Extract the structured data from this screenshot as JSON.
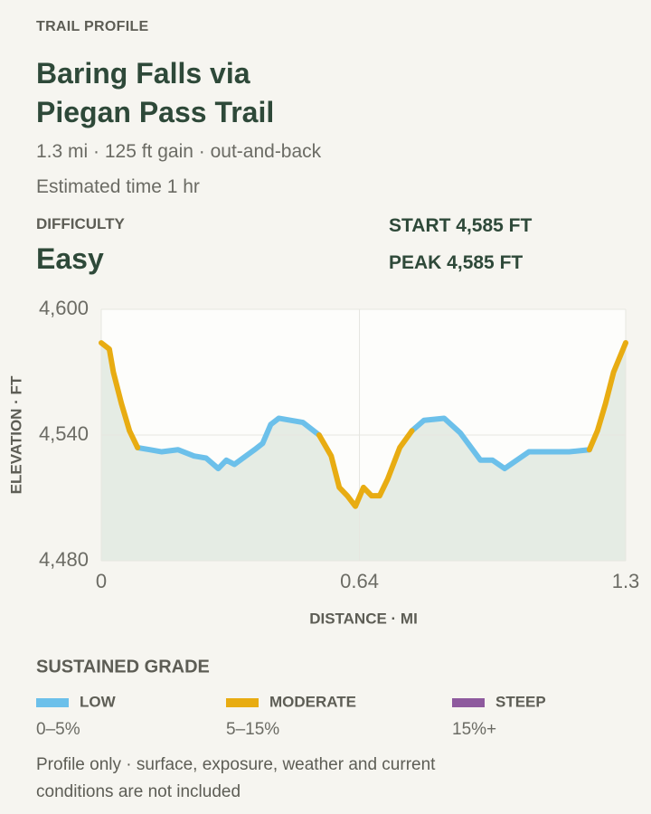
{
  "header": {
    "eyebrow": "TRAIL PROFILE",
    "title": "Baring Falls via Piegan Pass Trail",
    "summary": "1.3 mi · 125 ft gain · out-and-back",
    "time": "Estimated time 1 hr"
  },
  "stats": {
    "difficulty_label": "DIFFICULTY",
    "difficulty": "Easy",
    "start": "START 4,585 FT",
    "peak": "PEAK 4,585 FT"
  },
  "chart_data": {
    "type": "line",
    "x_label": "DISTANCE · MI",
    "y_label": "ELEVATION · FT",
    "x": [
      0,
      0.02,
      0.03,
      0.05,
      0.07,
      0.09,
      0.12,
      0.15,
      0.19,
      0.23,
      0.26,
      0.29,
      0.31,
      0.33,
      0.38,
      0.4,
      0.42,
      0.44,
      0.5,
      0.54,
      0.57,
      0.59,
      0.61,
      0.63,
      0.65,
      0.67,
      0.69,
      0.71,
      0.74,
      0.77,
      0.8,
      0.85,
      0.89,
      0.94,
      0.97,
      1.0,
      1.06,
      1.12,
      1.16,
      1.21,
      1.23,
      1.25,
      1.27,
      1.3
    ],
    "series": [
      {
        "name": "LOW",
        "range": "0–5%",
        "color": "#6cc0ea",
        "values": [
          null,
          null,
          null,
          null,
          null,
          4534,
          4533,
          4532,
          4533,
          4530,
          4529,
          4524,
          4528,
          4526,
          4533,
          4536,
          4545,
          4548,
          4546,
          4540,
          null,
          null,
          null,
          null,
          null,
          null,
          null,
          null,
          null,
          4542,
          4547,
          4548,
          4541,
          4528,
          4528,
          4524,
          4532,
          4532,
          4532,
          4533,
          null,
          null,
          null,
          null
        ]
      },
      {
        "name": "MODERATE",
        "range": "5–15%",
        "color": "#e8ac12",
        "values": [
          4584,
          4581,
          4570,
          4555,
          4542,
          4534,
          null,
          null,
          null,
          null,
          null,
          null,
          null,
          null,
          null,
          null,
          null,
          null,
          null,
          4540,
          4530,
          4515,
          4511,
          4506,
          4515,
          4511,
          4511,
          4519,
          4534,
          4542,
          null,
          null,
          null,
          null,
          null,
          null,
          null,
          null,
          null,
          4533,
          4542,
          4555,
          4570,
          4584
        ]
      },
      {
        "name": "STEEP",
        "range": "15%+",
        "color": "#8e5a9e",
        "values": [
          null,
          null,
          null,
          null,
          null,
          null,
          null,
          null,
          null,
          null,
          null,
          null,
          null,
          null,
          null,
          null,
          null,
          null,
          null,
          null,
          null,
          null,
          null,
          null,
          null,
          null,
          null,
          null,
          null,
          null,
          null,
          null,
          null,
          null,
          null,
          null,
          null,
          null,
          null,
          null,
          null,
          null,
          null,
          null
        ]
      }
    ],
    "xlim": [
      0,
      1.3
    ],
    "xticks": [
      0,
      0.64,
      1.3
    ],
    "ylim": [
      4480,
      4600
    ],
    "yticks": [
      {
        "value": 4480,
        "label": "4,480"
      },
      {
        "value": 4540,
        "label": "4,540"
      },
      {
        "value": 4600,
        "label": "4,600"
      }
    ],
    "grid": true,
    "area_color": "#e5ece4",
    "legend_title": "SUSTAINED GRADE"
  },
  "footnote": "Profile only · surface, exposure, weather and current conditions are not included"
}
